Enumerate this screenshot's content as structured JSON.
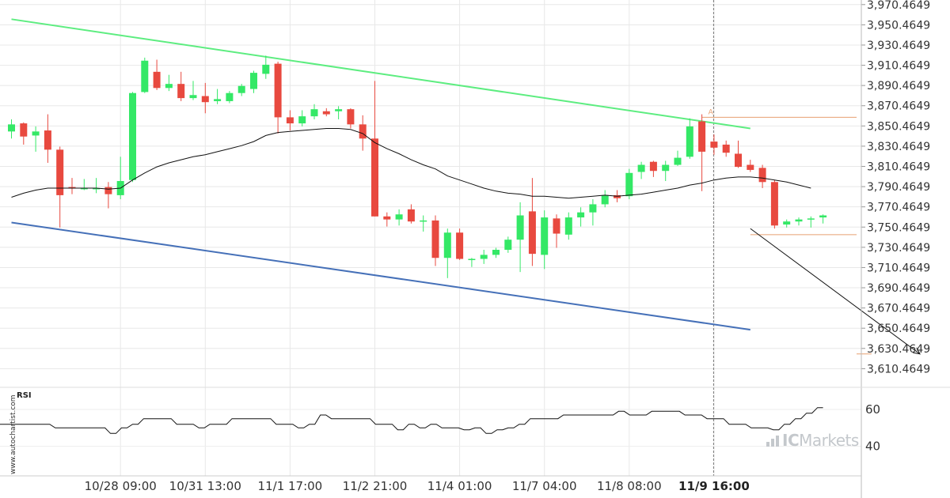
{
  "chart_data": [
    {
      "type": "candlestick",
      "y_tick_labels": [
        "3,970.4649",
        "3,950.4649",
        "3,930.4649",
        "3,910.4649",
        "3,890.4649",
        "3,870.4649",
        "3,850.4649",
        "3,830.4649",
        "3,810.4649",
        "3,790.4649",
        "3,770.4649",
        "3,750.4649",
        "3,730.4649",
        "3,710.4649",
        "3,690.4649",
        "3,670.4649",
        "3,650.4649",
        "3,630.4649",
        "3,610.4649"
      ],
      "y_ticks": [
        3970.4649,
        3950.4649,
        3930.4649,
        3910.4649,
        3890.4649,
        3870.4649,
        3850.4649,
        3830.4649,
        3810.4649,
        3790.4649,
        3770.4649,
        3750.4649,
        3730.4649,
        3710.4649,
        3690.4649,
        3670.4649,
        3650.4649,
        3630.4649,
        3610.4649
      ],
      "ylim": [
        3592,
        3975
      ],
      "x_tick_labels": [
        "10/28 09:00",
        "10/31 13:00",
        "11/1 17:00",
        "11/2 21:00",
        "11/4 01:00",
        "11/7 04:00",
        "11/8 08:00",
        "11/9 16:00"
      ],
      "x_tick_index": [
        9,
        16,
        23,
        30,
        37,
        44,
        51,
        58
      ],
      "highlight_x_label": "11/9 16:00",
      "candles": [
        {
          "o": 3845,
          "h": 3857,
          "l": 3838,
          "c": 3852
        },
        {
          "o": 3853,
          "h": 3854,
          "l": 3832,
          "c": 3840
        },
        {
          "o": 3841,
          "h": 3850,
          "l": 3825,
          "c": 3845
        },
        {
          "o": 3846,
          "h": 3862,
          "l": 3814,
          "c": 3827
        },
        {
          "o": 3827,
          "h": 3830,
          "l": 3750,
          "c": 3782
        },
        {
          "o": 3790,
          "h": 3799,
          "l": 3783,
          "c": 3789
        },
        {
          "o": 3789,
          "h": 3798,
          "l": 3787,
          "c": 3789
        },
        {
          "o": 3789,
          "h": 3799,
          "l": 3784,
          "c": 3789
        },
        {
          "o": 3790,
          "h": 3795,
          "l": 3769,
          "c": 3783
        },
        {
          "o": 3782,
          "h": 3820,
          "l": 3778,
          "c": 3796
        },
        {
          "o": 3797,
          "h": 3884,
          "l": 3795,
          "c": 3883
        },
        {
          "o": 3884,
          "h": 3918,
          "l": 3883,
          "c": 3915
        },
        {
          "o": 3904,
          "h": 3916,
          "l": 3886,
          "c": 3888
        },
        {
          "o": 3888,
          "h": 3901,
          "l": 3885,
          "c": 3892
        },
        {
          "o": 3892,
          "h": 3904,
          "l": 3875,
          "c": 3878
        },
        {
          "o": 3878,
          "h": 3895,
          "l": 3876,
          "c": 3881
        },
        {
          "o": 3880,
          "h": 3893,
          "l": 3863,
          "c": 3874
        },
        {
          "o": 3875,
          "h": 3887,
          "l": 3872,
          "c": 3877
        },
        {
          "o": 3875,
          "h": 3885,
          "l": 3873,
          "c": 3883
        },
        {
          "o": 3883,
          "h": 3892,
          "l": 3880,
          "c": 3890
        },
        {
          "o": 3887,
          "h": 3905,
          "l": 3883,
          "c": 3903
        },
        {
          "o": 3902,
          "h": 3920,
          "l": 3897,
          "c": 3911
        },
        {
          "o": 3912,
          "h": 3914,
          "l": 3843,
          "c": 3859
        },
        {
          "o": 3859,
          "h": 3866,
          "l": 3846,
          "c": 3853
        },
        {
          "o": 3853,
          "h": 3866,
          "l": 3850,
          "c": 3860
        },
        {
          "o": 3860,
          "h": 3872,
          "l": 3857,
          "c": 3867
        },
        {
          "o": 3865,
          "h": 3868,
          "l": 3860,
          "c": 3862
        },
        {
          "o": 3865,
          "h": 3870,
          "l": 3857,
          "c": 3867
        },
        {
          "o": 3867,
          "h": 3868,
          "l": 3848,
          "c": 3852
        },
        {
          "o": 3852,
          "h": 3861,
          "l": 3826,
          "c": 3838
        },
        {
          "o": 3838,
          "h": 3895,
          "l": 3761,
          "c": 3761
        },
        {
          "o": 3761,
          "h": 3765,
          "l": 3751,
          "c": 3758
        },
        {
          "o": 3758,
          "h": 3768,
          "l": 3752,
          "c": 3763
        },
        {
          "o": 3768,
          "h": 3773,
          "l": 3754,
          "c": 3756
        },
        {
          "o": 3756,
          "h": 3762,
          "l": 3746,
          "c": 3757
        },
        {
          "o": 3757,
          "h": 3762,
          "l": 3712,
          "c": 3720
        },
        {
          "o": 3720,
          "h": 3749,
          "l": 3700,
          "c": 3745
        },
        {
          "o": 3745,
          "h": 3749,
          "l": 3718,
          "c": 3719
        },
        {
          "o": 3718,
          "h": 3720,
          "l": 3711,
          "c": 3719
        },
        {
          "o": 3719,
          "h": 3728,
          "l": 3714,
          "c": 3723
        },
        {
          "o": 3723,
          "h": 3730,
          "l": 3720,
          "c": 3728
        },
        {
          "o": 3728,
          "h": 3741,
          "l": 3725,
          "c": 3738
        },
        {
          "o": 3738,
          "h": 3775,
          "l": 3706,
          "c": 3762
        },
        {
          "o": 3766,
          "h": 3799,
          "l": 3712,
          "c": 3724
        },
        {
          "o": 3723,
          "h": 3767,
          "l": 3709,
          "c": 3760
        },
        {
          "o": 3759,
          "h": 3763,
          "l": 3730,
          "c": 3744
        },
        {
          "o": 3743,
          "h": 3765,
          "l": 3738,
          "c": 3760
        },
        {
          "o": 3760,
          "h": 3770,
          "l": 3751,
          "c": 3765
        },
        {
          "o": 3765,
          "h": 3778,
          "l": 3752,
          "c": 3773
        },
        {
          "o": 3773,
          "h": 3787,
          "l": 3770,
          "c": 3782
        },
        {
          "o": 3782,
          "h": 3787,
          "l": 3775,
          "c": 3779
        },
        {
          "o": 3781,
          "h": 3808,
          "l": 3778,
          "c": 3804
        },
        {
          "o": 3805,
          "h": 3815,
          "l": 3798,
          "c": 3812
        },
        {
          "o": 3815,
          "h": 3816,
          "l": 3800,
          "c": 3806
        },
        {
          "o": 3806,
          "h": 3816,
          "l": 3796,
          "c": 3812
        },
        {
          "o": 3812,
          "h": 3826,
          "l": 3811,
          "c": 3819
        },
        {
          "o": 3820,
          "h": 3858,
          "l": 3818,
          "c": 3850
        },
        {
          "o": 3855,
          "h": 3862,
          "l": 3786,
          "c": 3825
        },
        {
          "o": 3835,
          "h": 3842,
          "l": 3822,
          "c": 3829
        },
        {
          "o": 3832,
          "h": 3836,
          "l": 3820,
          "c": 3824
        },
        {
          "o": 3823,
          "h": 3836,
          "l": 3809,
          "c": 3810
        },
        {
          "o": 3812,
          "h": 3817,
          "l": 3805,
          "c": 3807
        },
        {
          "o": 3809,
          "h": 3812,
          "l": 3789,
          "c": 3795
        },
        {
          "o": 3795,
          "h": 3797,
          "l": 3749,
          "c": 3752
        },
        {
          "o": 3753,
          "h": 3758,
          "l": 3750,
          "c": 3756
        },
        {
          "o": 3756,
          "h": 3760,
          "l": 3752,
          "c": 3758
        },
        {
          "o": 3758,
          "h": 3761,
          "l": 3750,
          "c": 3759
        },
        {
          "o": 3760,
          "h": 3763,
          "l": 3754,
          "c": 3762
        }
      ],
      "moving_average": [
        3780,
        3784,
        3787,
        3789,
        3789,
        3789,
        3789,
        3789,
        3788,
        3789,
        3797,
        3804,
        3810,
        3814,
        3817,
        3820,
        3822,
        3825,
        3828,
        3831,
        3835,
        3841,
        3844,
        3845,
        3846,
        3847,
        3848,
        3848,
        3847,
        3843,
        3834,
        3828,
        3823,
        3817,
        3812,
        3808,
        3801,
        3797,
        3793,
        3789,
        3786,
        3784,
        3783,
        3781,
        3781,
        3780,
        3779,
        3780,
        3781,
        3782,
        3781,
        3782,
        3783,
        3785,
        3787,
        3789,
        3792,
        3794,
        3797,
        3799,
        3800,
        3800,
        3799,
        3797,
        3795,
        3792,
        3789
      ],
      "forecast_series": 64,
      "colors": {
        "up": "#34e866",
        "down": "#e8493f",
        "resistance": "#5ded80",
        "support": "#4570b8",
        "level": "#e8a070",
        "ma": "#111111"
      },
      "pattern_label": "A",
      "resistance_line": [
        [
          0,
          3956
        ],
        [
          61,
          3848
        ]
      ],
      "support_line": [
        [
          0,
          3755
        ],
        [
          61,
          3649
        ]
      ],
      "level_a": 3859,
      "level_b": 3743,
      "target_level": 3625,
      "projection": {
        "from": [
          61,
          3749
        ],
        "to": [
          75,
          3625
        ]
      }
    },
    {
      "type": "line",
      "ylabel": "RSI",
      "y_ticks": [
        60,
        40
      ],
      "y_tick_labels": [
        "60",
        "40"
      ],
      "ylim": [
        24,
        72
      ],
      "values": [
        52,
        52,
        52,
        52,
        52,
        52,
        52,
        52,
        52,
        52,
        50,
        50,
        50,
        50,
        50,
        50,
        50,
        50,
        50,
        50,
        47,
        47,
        50,
        50,
        52,
        52,
        55,
        55,
        55,
        55,
        55,
        55,
        52,
        52,
        52,
        52,
        50,
        50,
        52,
        52,
        52,
        52,
        55,
        55,
        55,
        55,
        55,
        55,
        55,
        55,
        52,
        52,
        52,
        52,
        50,
        50,
        52,
        52,
        57,
        57,
        55,
        55,
        55,
        55,
        55,
        55,
        55,
        55,
        52,
        52,
        52,
        52,
        49,
        49,
        52,
        52,
        50,
        50,
        52,
        52,
        50,
        50,
        50,
        50,
        49,
        49,
        50,
        50,
        47,
        47,
        49,
        49,
        50,
        50,
        52,
        52,
        55,
        55,
        55,
        55,
        55,
        55,
        57,
        57,
        57,
        57,
        57,
        57,
        57,
        57,
        57,
        57,
        59,
        59,
        57,
        57,
        57,
        57,
        59,
        59,
        59,
        59,
        59,
        59,
        57,
        57,
        57,
        57,
        55,
        55,
        55,
        55,
        52,
        52,
        52,
        52,
        50,
        50,
        50,
        50,
        49,
        49,
        52,
        52,
        55,
        55,
        58,
        58,
        61,
        61
      ]
    }
  ],
  "watermark": "www.autochartist.com",
  "brand": {
    "ic": "IC",
    "rest": "Markets"
  }
}
